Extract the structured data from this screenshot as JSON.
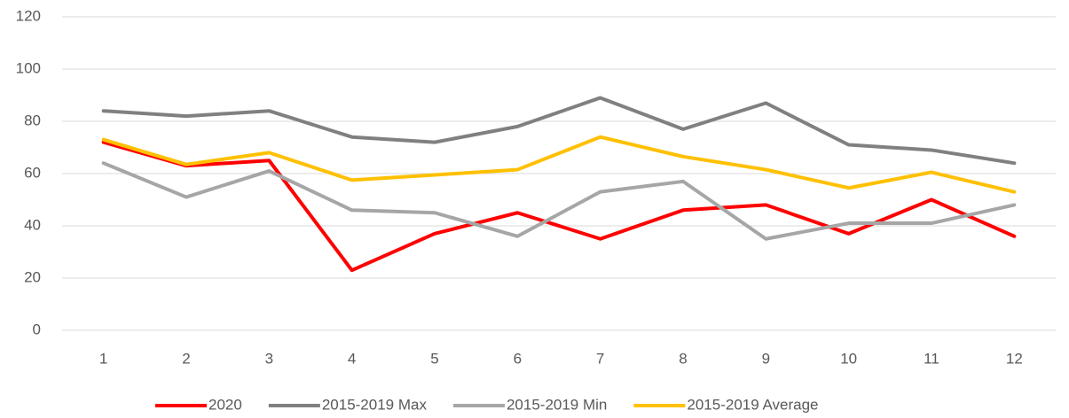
{
  "chart_data": {
    "type": "line",
    "categories": [
      1,
      2,
      3,
      4,
      5,
      6,
      7,
      8,
      9,
      10,
      11,
      12
    ],
    "series": [
      {
        "name": "2020",
        "color": "#ff0000",
        "values": [
          72,
          63,
          65,
          23,
          37,
          45,
          35,
          46,
          48,
          37,
          50,
          36
        ]
      },
      {
        "name": "2015-2019 Max",
        "color": "#808080",
        "values": [
          84,
          82,
          84,
          74,
          72,
          78,
          89,
          77,
          87,
          71,
          69,
          64
        ]
      },
      {
        "name": "2015-2019 Min",
        "color": "#a6a6a6",
        "values": [
          64,
          51,
          61,
          46,
          45,
          36,
          53,
          57,
          35,
          41,
          41,
          48
        ]
      },
      {
        "name": "2015-2019 Average",
        "color": "#ffc000",
        "values": [
          73,
          63.5,
          68,
          57.5,
          59.5,
          61.5,
          74,
          66.5,
          61.5,
          54.5,
          60.5,
          53
        ]
      }
    ],
    "ylim": [
      0,
      120
    ],
    "yticks": [
      0,
      20,
      40,
      60,
      80,
      100,
      120
    ],
    "grid": true,
    "legend": "bottom"
  }
}
